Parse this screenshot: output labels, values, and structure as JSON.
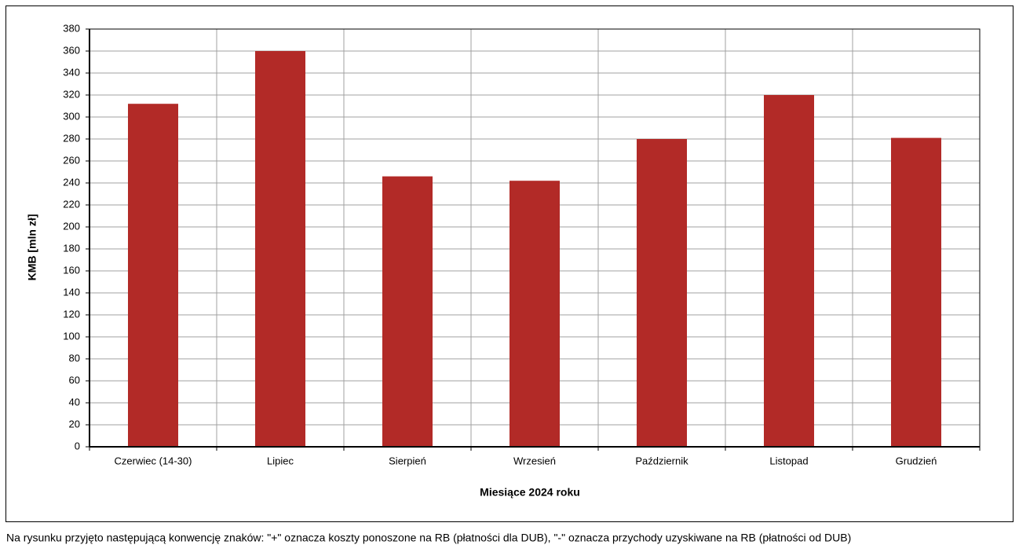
{
  "chart_data": {
    "type": "bar",
    "categories": [
      "Czerwiec (14-30)",
      "Lipiec",
      "Sierpień",
      "Wrzesień",
      "Październik",
      "Listopad",
      "Grudzień"
    ],
    "values": [
      312,
      360,
      246,
      242,
      280,
      320,
      281
    ],
    "color": "#b22a27",
    "xlabel": "Miesiące  2024 roku",
    "ylabel": "KMB [mln zł]",
    "ylim": [
      0,
      380
    ],
    "yticks": [
      0,
      20,
      40,
      60,
      80,
      100,
      120,
      140,
      160,
      180,
      200,
      220,
      240,
      260,
      280,
      300,
      320,
      340,
      360,
      380
    ],
    "grid": true,
    "caption": "Na rysunku przyjęto następującą konwencję  znaków: \"+\" oznacza koszty ponoszone na RB (płatności dla DUB), \"-\" oznacza przychody uzyskiwane na RB (płatności od DUB)"
  }
}
